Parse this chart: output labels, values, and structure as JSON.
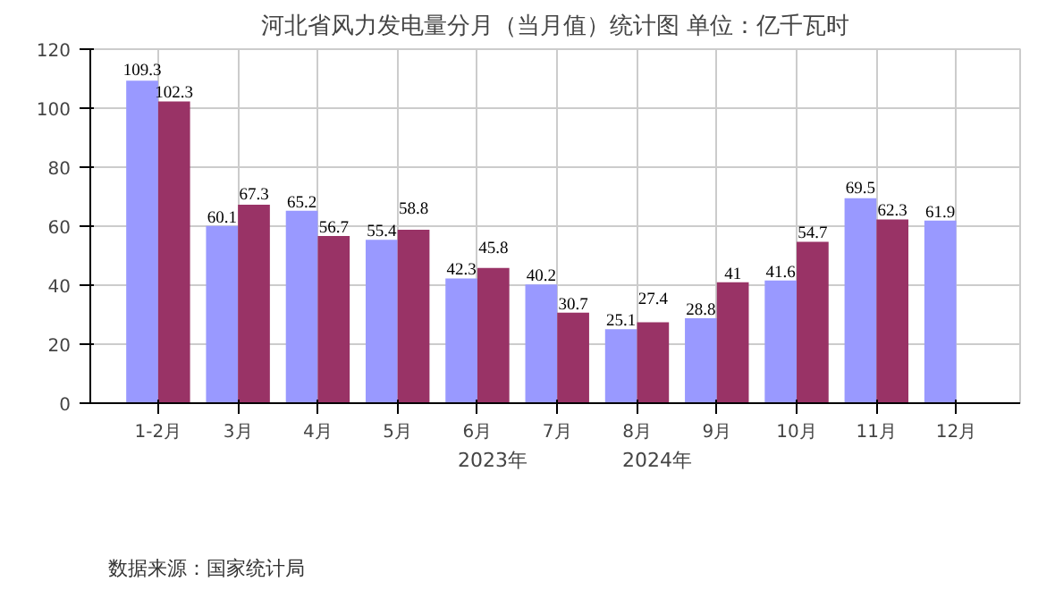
{
  "chart_data": {
    "type": "bar",
    "title": "河北省风力发电量分月（当月值）统计图 单位：亿千瓦时",
    "categories": [
      "1-2月",
      "3月",
      "4月",
      "5月",
      "6月",
      "7月",
      "8月",
      "9月",
      "10月",
      "11月",
      "12月"
    ],
    "series": [
      {
        "name": "2023年",
        "color": "#9999ff",
        "values": [
          109.3,
          60.1,
          65.2,
          55.4,
          42.3,
          40.2,
          25.1,
          28.8,
          41.6,
          69.5,
          61.9
        ]
      },
      {
        "name": "2024年",
        "color": "#993366",
        "values": [
          102.3,
          67.3,
          56.7,
          58.8,
          45.8,
          30.7,
          27.4,
          41,
          54.7,
          62.3,
          null
        ]
      }
    ],
    "ylim": [
      0,
      120
    ],
    "yticks": [
      0,
      20,
      40,
      60,
      80,
      100,
      120
    ],
    "grid": true,
    "legend": "bottom",
    "data_labels": true,
    "annotations": [
      "数据来源：国家统计局"
    ]
  }
}
